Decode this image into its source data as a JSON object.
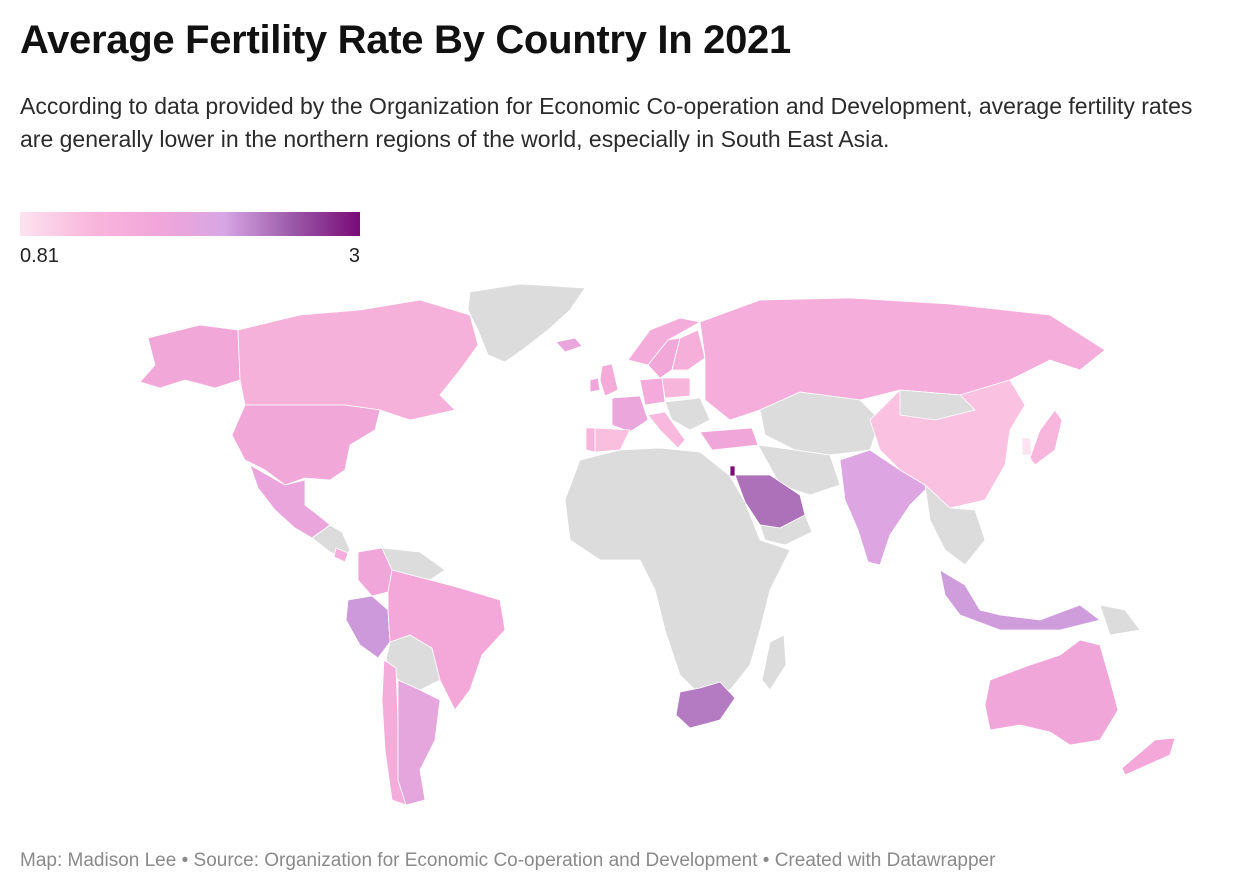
{
  "title": "Average Fertility Rate By Country In 2021",
  "subtitle": "According to data provided by the Organization for Economic Co-operation and Development, average fertility rates are generally lower in the northern regions of the world, especially in South East Asia.",
  "legend": {
    "min_label": "0.81",
    "max_label": "3",
    "min_value": 0.81,
    "max_value": 3,
    "gradient_colors": [
      "#fde3ef",
      "#f9b8dd",
      "#f2a6d9",
      "#d7a6e4",
      "#9b5aa8",
      "#7a0a78"
    ]
  },
  "footer": {
    "credit": "Map: Madison Lee • Source: Organization for Economic Co-operation and Development • Created with Datawrapper"
  },
  "colors": {
    "no_data": "#dcdcdc",
    "background": "#ffffff"
  },
  "map_data": {
    "metric": "fertility_rate",
    "countries": [
      {
        "name": "Canada",
        "value": 1.43
      },
      {
        "name": "United States",
        "value": 1.66
      },
      {
        "name": "Mexico",
        "value": 1.82
      },
      {
        "name": "Colombia",
        "value": 1.7
      },
      {
        "name": "Peru",
        "value": 2.2
      },
      {
        "name": "Brazil",
        "value": 1.64
      },
      {
        "name": "Argentina",
        "value": 1.89
      },
      {
        "name": "Chile",
        "value": 1.54
      },
      {
        "name": "Costa Rica",
        "value": 1.5
      },
      {
        "name": "Iceland",
        "value": 1.82
      },
      {
        "name": "Norway",
        "value": 1.55
      },
      {
        "name": "Sweden",
        "value": 1.67
      },
      {
        "name": "Finland",
        "value": 1.46
      },
      {
        "name": "United Kingdom",
        "value": 1.56
      },
      {
        "name": "Ireland",
        "value": 1.72
      },
      {
        "name": "France",
        "value": 1.8
      },
      {
        "name": "Spain",
        "value": 1.19
      },
      {
        "name": "Portugal",
        "value": 1.35
      },
      {
        "name": "Germany",
        "value": 1.58
      },
      {
        "name": "Italy",
        "value": 1.25
      },
      {
        "name": "Poland",
        "value": 1.33
      },
      {
        "name": "Turkey",
        "value": 1.7
      },
      {
        "name": "Israel",
        "value": 3.0
      },
      {
        "name": "Saudi Arabia",
        "value": 2.43
      },
      {
        "name": "Russia",
        "value": 1.5
      },
      {
        "name": "India",
        "value": 2.03
      },
      {
        "name": "China",
        "value": 1.16
      },
      {
        "name": "Japan",
        "value": 1.3
      },
      {
        "name": "South Korea",
        "value": 0.81
      },
      {
        "name": "Indonesia",
        "value": 2.18
      },
      {
        "name": "South Africa",
        "value": 2.37
      },
      {
        "name": "Australia",
        "value": 1.7
      },
      {
        "name": "New Zealand",
        "value": 1.64
      }
    ]
  }
}
